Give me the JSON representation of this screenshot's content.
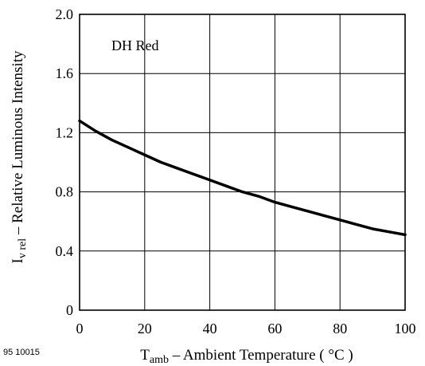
{
  "figure_id": "95 10015",
  "chart_data": {
    "type": "line",
    "title": "",
    "annotation": "DH Red",
    "xlabel": {
      "symbol": "T",
      "subscript": "amb",
      "text": " – Ambient Temperature ( °C )"
    },
    "ylabel": {
      "symbol": "I",
      "subscript": "v rel",
      "text": " – Relative Luminous Intensity"
    },
    "xlim": [
      0,
      100
    ],
    "ylim": [
      0,
      2.0
    ],
    "xticks": [
      "0",
      "20",
      "40",
      "60",
      "80",
      "100"
    ],
    "yticks": [
      "0",
      "0.4",
      "0.8",
      "1.2",
      "1.6",
      "2.0"
    ],
    "grid": true,
    "series": [
      {
        "x": [
          0,
          5,
          10,
          15,
          20,
          25,
          30,
          35,
          40,
          45,
          50,
          55,
          60,
          65,
          70,
          75,
          80,
          85,
          90,
          95,
          100
        ],
        "y": [
          1.28,
          1.21,
          1.15,
          1.1,
          1.05,
          1.0,
          0.96,
          0.92,
          0.88,
          0.84,
          0.8,
          0.77,
          0.73,
          0.7,
          0.67,
          0.64,
          0.61,
          0.58,
          0.55,
          0.53,
          0.51
        ]
      }
    ],
    "line_color": "#000000"
  }
}
